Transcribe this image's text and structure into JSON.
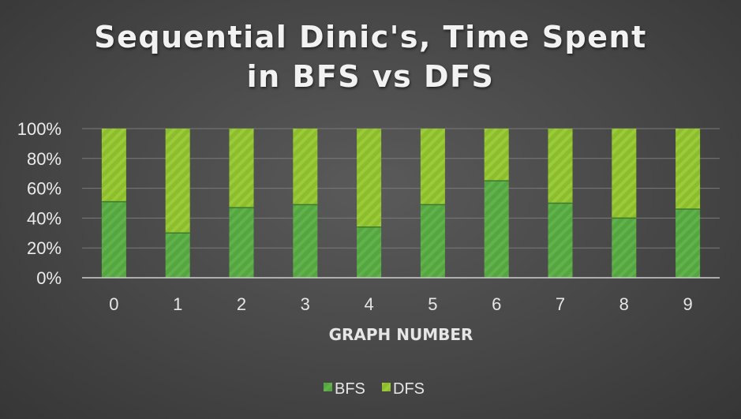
{
  "chart_data": {
    "type": "bar",
    "stacked": "percent",
    "title_lines": [
      "Sequential Dinic's, Time Spent",
      "in BFS vs DFS"
    ],
    "xlabel": "GRAPH NUMBER",
    "ylabel": "",
    "categories": [
      "0",
      "1",
      "2",
      "3",
      "4",
      "5",
      "6",
      "7",
      "8",
      "9"
    ],
    "y_ticks": [
      "0%",
      "20%",
      "40%",
      "60%",
      "80%",
      "100%"
    ],
    "ylim": [
      0,
      100
    ],
    "series": [
      {
        "name": "BFS",
        "values": [
          51,
          30,
          47,
          49,
          34,
          49,
          65,
          50,
          40,
          46
        ],
        "color": "#57a842"
      },
      {
        "name": "DFS",
        "values": [
          49,
          70,
          53,
          51,
          66,
          51,
          35,
          50,
          60,
          54
        ],
        "color": "#8fbf2e"
      }
    ],
    "grid": true,
    "legend_position": "bottom"
  }
}
